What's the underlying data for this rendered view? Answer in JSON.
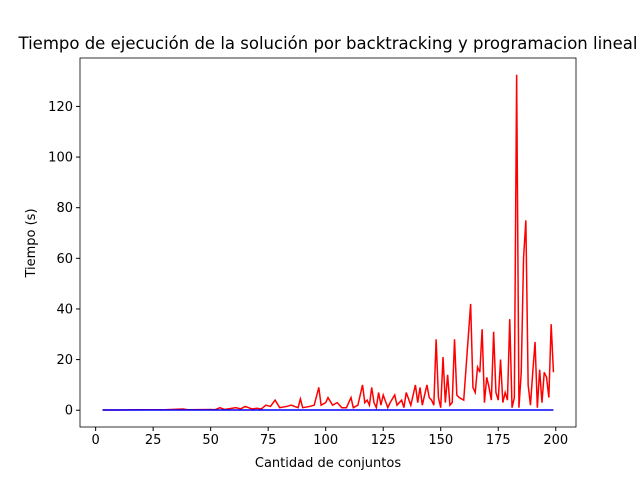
{
  "chart_data": {
    "type": "line",
    "title": "Tiempo de ejecución de la solución por backtracking y programacion lineal",
    "xlabel": "Cantidad de conjuntos",
    "ylabel": "Tiempo (s)",
    "x": [
      3,
      10,
      20,
      30,
      38,
      40,
      50,
      52,
      54,
      56,
      61,
      63,
      65,
      68,
      70,
      72,
      74,
      76,
      78,
      80,
      83,
      85,
      88,
      89,
      90,
      93,
      95,
      97,
      98,
      100,
      101,
      103,
      105,
      107,
      109,
      111,
      112,
      114,
      116,
      117,
      118,
      119,
      120,
      121,
      122,
      123,
      124,
      125,
      127,
      128,
      130,
      131,
      133,
      134,
      135,
      137,
      139,
      140,
      141,
      142,
      144,
      145,
      146,
      147,
      148,
      149,
      150,
      151,
      152,
      153,
      154,
      155,
      156,
      157,
      158,
      160,
      163,
      164,
      165,
      166,
      167,
      168,
      169,
      170,
      171,
      172,
      173,
      174,
      175,
      176,
      177,
      178,
      179,
      180,
      181,
      182,
      183,
      184,
      185,
      186,
      187,
      188,
      189,
      190,
      191,
      192,
      193,
      194,
      195,
      196,
      197,
      198,
      199
    ],
    "series": [
      {
        "color": "#ff0000",
        "values": [
          0.1,
          0.1,
          0.2,
          0.2,
          0.5,
          0.2,
          0.3,
          0.2,
          1,
          0.3,
          1,
          0.5,
          1.5,
          0.5,
          0.8,
          0.5,
          2,
          1.5,
          4,
          1,
          1.5,
          2,
          1,
          4.5,
          1,
          1.5,
          2,
          9,
          2,
          3,
          5,
          2,
          3,
          1,
          1,
          5,
          1,
          2,
          10,
          3,
          4,
          2,
          9,
          3,
          1,
          7,
          2,
          6,
          1,
          3,
          6,
          2,
          4,
          1,
          7,
          2,
          10,
          3,
          9,
          2,
          10,
          5,
          4,
          2,
          28,
          5,
          1,
          21,
          3,
          14,
          2,
          3,
          28,
          6,
          5,
          4,
          42,
          9,
          7,
          17,
          15,
          32,
          3,
          13,
          9,
          4,
          31,
          7,
          4,
          20,
          3,
          7,
          4,
          36,
          1,
          5,
          132.5,
          1,
          15,
          60,
          75,
          10,
          2,
          15,
          27,
          1,
          16,
          3,
          15,
          13,
          5,
          34,
          15
        ]
      },
      {
        "color": "#0000ff",
        "values": [
          0.1,
          0.1,
          0.1,
          0.1,
          0.1,
          0.1,
          0.1,
          0.1,
          0.1,
          0.1,
          0.1,
          0.1,
          0.1,
          0.1,
          0.1,
          0.1,
          0.1,
          0.1,
          0.1,
          0.1,
          0.1,
          0.1,
          0.1,
          0.1,
          0.1,
          0.1,
          0.1,
          0.1,
          0.1,
          0.1,
          0.1,
          0.1,
          0.1,
          0.1,
          0.1,
          0.1,
          0.1,
          0.1,
          0.1,
          0.1,
          0.1,
          0.1,
          0.1,
          0.1,
          0.1,
          0.1,
          0.1,
          0.1,
          0.1,
          0.1,
          0.1,
          0.1,
          0.1,
          0.1,
          0.1,
          0.1,
          0.1,
          0.1,
          0.1,
          0.1,
          0.1,
          0.1,
          0.1,
          0.1,
          0.1,
          0.1,
          0.1,
          0.1,
          0.1,
          0.1,
          0.1,
          0.1,
          0.1,
          0.1,
          0.1,
          0.1,
          0.1,
          0.1,
          0.1,
          0.1,
          0.1,
          0.1,
          0.1,
          0.1,
          0.1,
          0.1,
          0.1,
          0.1,
          0.1,
          0.1,
          0.1,
          0.1,
          0.1,
          0.1,
          0.1,
          0.1,
          0.1,
          0.1,
          0.1,
          0.1,
          0.1,
          0.1,
          0.1,
          0.1,
          0.1,
          0.1,
          0.1,
          0.1,
          0.1,
          0.1,
          0.1,
          0.1,
          0.1
        ]
      }
    ],
    "xlim": [
      -6.8,
      208.8
    ],
    "xticks": [
      0,
      25,
      50,
      75,
      100,
      125,
      150,
      175,
      200
    ],
    "ylim": [
      -6.625,
      139.125
    ],
    "yticks": [
      0,
      20,
      40,
      60,
      80,
      100,
      120
    ]
  }
}
